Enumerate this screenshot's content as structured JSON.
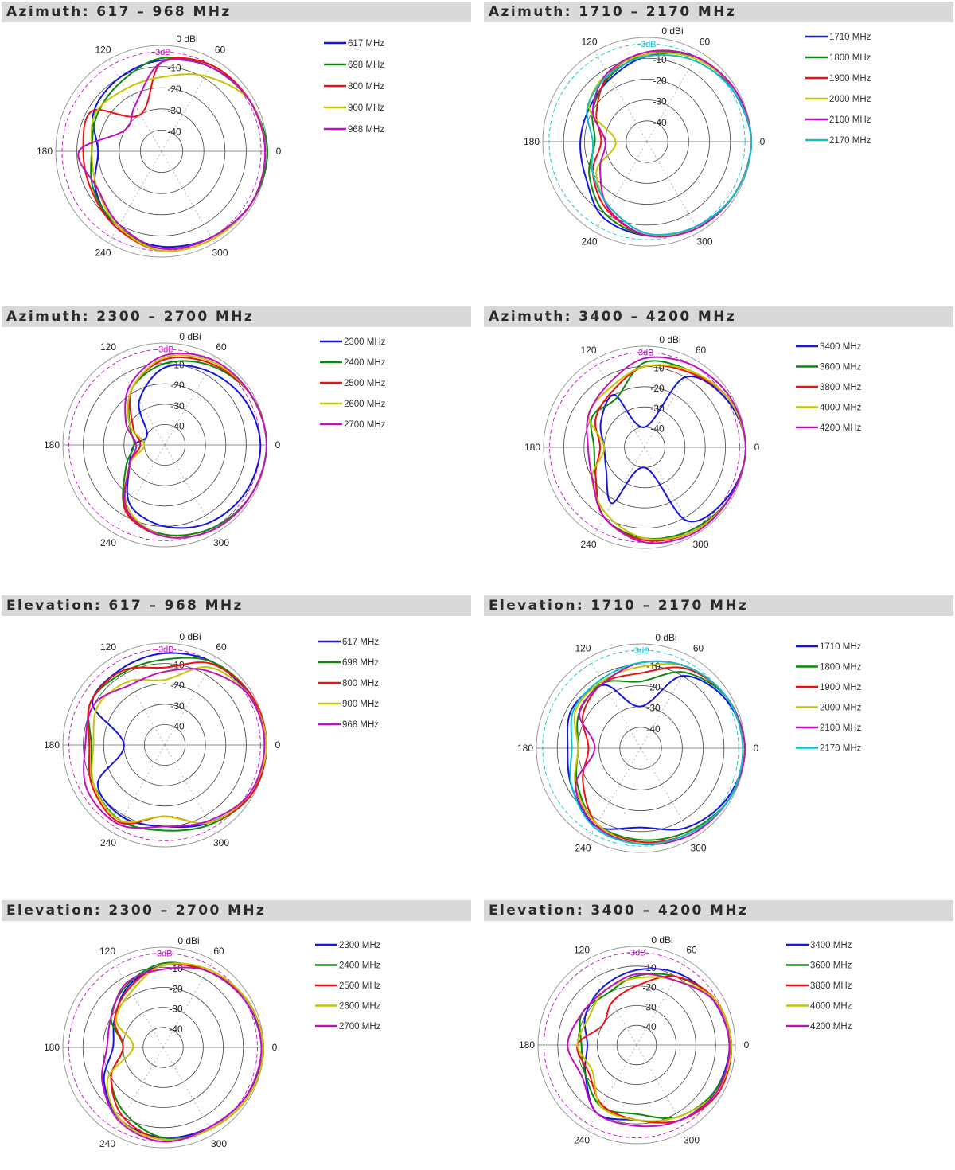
{
  "colors": {
    "blue": "#1515e0",
    "green": "#0a8a0a",
    "red": "#f01010",
    "yellow": "#c6c600",
    "magenta": "#c010c0",
    "cyan": "#10c0c8"
  },
  "chart_data": [
    {
      "type": "polar",
      "title": "Azimuth: 617 – 968 MHz",
      "r_unit": "dBi",
      "rlim": [
        -50,
        0
      ],
      "ring_ticks": [
        "0 dBi",
        "-10",
        "-20",
        "-30",
        "-40"
      ],
      "reference_label": "-3dB",
      "reference_color": "#c010c0",
      "angle_ticks": [
        "0",
        "60",
        "120",
        "180",
        "240",
        "300"
      ],
      "angles": [
        0,
        30,
        60,
        90,
        120,
        150,
        180,
        210,
        240,
        270,
        300,
        330
      ],
      "series": [
        {
          "name": "617 MHz",
          "color": "#1515e0",
          "values": [
            0,
            -2,
            -4,
            -7,
            -10,
            -13,
            -20,
            -14,
            -8,
            -5,
            -3,
            -1
          ]
        },
        {
          "name": "698 MHz",
          "color": "#0a8a0a",
          "values": [
            0,
            -2,
            -4,
            -6,
            -12,
            -15,
            -17,
            -13,
            -9,
            -4,
            -3,
            -1
          ]
        },
        {
          "name": "800 MHz",
          "color": "#f01010",
          "values": [
            -1,
            -2,
            -3,
            -8,
            -30,
            -12,
            -13,
            -12,
            -8,
            -3,
            -2,
            -1
          ]
        },
        {
          "name": "900 MHz",
          "color": "#c6c600",
          "values": [
            -1,
            -2,
            -9,
            -15,
            -16,
            -14,
            -17,
            -15,
            -9,
            -3,
            -2,
            -1
          ]
        },
        {
          "name": "968 MHz",
          "color": "#c010c0",
          "values": [
            -1,
            -2,
            -4,
            -8,
            -25,
            -30,
            -11,
            -15,
            -10,
            -4,
            -3,
            -1
          ]
        }
      ]
    },
    {
      "type": "polar",
      "title": "Azimuth: 1710 – 2170 MHz",
      "r_unit": "dBi",
      "rlim": [
        -50,
        0
      ],
      "ring_ticks": [
        "0 dBi",
        "-10",
        "-20",
        "-30",
        "-40"
      ],
      "reference_label": "-3dB",
      "reference_color": "#10c0c8",
      "angle_ticks": [
        "0",
        "60",
        "120",
        "180",
        "240",
        "300"
      ],
      "angles": [
        0,
        30,
        60,
        90,
        120,
        150,
        180,
        210,
        240,
        270,
        300,
        330
      ],
      "series": [
        {
          "name": "1710 MHz",
          "color": "#1515e0",
          "values": [
            0,
            -2,
            -3,
            -9,
            -15,
            -18,
            -18,
            -16,
            -8,
            -5,
            -3,
            -1
          ]
        },
        {
          "name": "1800 MHz",
          "color": "#0a8a0a",
          "values": [
            0,
            -1,
            -3,
            -8,
            -14,
            -20,
            -25,
            -18,
            -10,
            -5,
            -2,
            -1
          ]
        },
        {
          "name": "1900 MHz",
          "color": "#f01010",
          "values": [
            0,
            -1,
            -3,
            -7,
            -13,
            -22,
            -28,
            -20,
            -12,
            -5,
            -2,
            -1
          ]
        },
        {
          "name": "2000 MHz",
          "color": "#c6c600",
          "values": [
            0,
            -1,
            -4,
            -8,
            -12,
            -18,
            -35,
            -22,
            -14,
            -6,
            -2,
            -1
          ]
        },
        {
          "name": "2100 MHz",
          "color": "#c010c0",
          "values": [
            0,
            -1,
            -3,
            -7,
            -12,
            -20,
            -30,
            -24,
            -13,
            -5,
            -2,
            -1
          ]
        },
        {
          "name": "2170 MHz",
          "color": "#10c0c8",
          "values": [
            0,
            -2,
            -5,
            -9,
            -13,
            -17,
            -24,
            -20,
            -14,
            -6,
            -3,
            -1
          ]
        }
      ]
    },
    {
      "type": "polar",
      "title": "Azimuth: 2300 – 2700 MHz",
      "r_unit": "dBi",
      "rlim": [
        -50,
        0
      ],
      "ring_ticks": [
        "0 dBi",
        "-10",
        "-20",
        "-30",
        "-40"
      ],
      "reference_label": "-3dB",
      "reference_color": "#c010c0",
      "angle_ticks": [
        "0",
        "60",
        "120",
        "180",
        "240",
        "300"
      ],
      "angles": [
        0,
        30,
        60,
        90,
        120,
        150,
        180,
        210,
        240,
        270,
        300,
        330
      ],
      "series": [
        {
          "name": "2300 MHz",
          "color": "#1515e0",
          "values": [
            -3,
            -5,
            -8,
            -12,
            -25,
            -40,
            -35,
            -30,
            -16,
            -10,
            -6,
            -4
          ]
        },
        {
          "name": "2400 MHz",
          "color": "#0a8a0a",
          "values": [
            0,
            -1,
            -5,
            -10,
            -18,
            -30,
            -35,
            -28,
            -12,
            -6,
            -3,
            -1
          ]
        },
        {
          "name": "2500 MHz",
          "color": "#f01010",
          "values": [
            0,
            -1,
            -4,
            -8,
            -18,
            -32,
            -38,
            -30,
            -12,
            -5,
            -2,
            -1
          ]
        },
        {
          "name": "2600 MHz",
          "color": "#c6c600",
          "values": [
            0,
            -1,
            -3,
            -7,
            -18,
            -30,
            -40,
            -30,
            -14,
            -5,
            -2,
            -1
          ]
        },
        {
          "name": "2700 MHz",
          "color": "#c010c0",
          "values": [
            0,
            -1,
            -2,
            -6,
            -16,
            -28,
            -36,
            -30,
            -13,
            -5,
            -2,
            -1
          ]
        }
      ]
    },
    {
      "type": "polar",
      "title": "Azimuth: 3400 – 4200 MHz",
      "r_unit": "dBi",
      "rlim": [
        -50,
        0
      ],
      "ring_ticks": [
        "0 dBi",
        "-10",
        "-20",
        "-30",
        "-40"
      ],
      "reference_label": "-3dB",
      "reference_color": "#c010c0",
      "angle_ticks": [
        "0",
        "60",
        "120",
        "180",
        "240",
        "300"
      ],
      "angles": [
        0,
        30,
        60,
        90,
        120,
        150,
        180,
        210,
        240,
        270,
        300,
        330
      ],
      "series": [
        {
          "name": "3400 MHz",
          "color": "#1515e0",
          "values": [
            0,
            -3,
            -10,
            -40,
            -20,
            -25,
            -30,
            -28,
            -18,
            -40,
            -8,
            -2
          ]
        },
        {
          "name": "3600 MHz",
          "color": "#0a8a0a",
          "values": [
            0,
            -2,
            -6,
            -8,
            -22,
            -20,
            -25,
            -22,
            -10,
            -5,
            -3,
            -1
          ]
        },
        {
          "name": "3800 MHz",
          "color": "#f01010",
          "values": [
            0,
            -2,
            -7,
            -10,
            -18,
            -22,
            -28,
            -22,
            -10,
            -4,
            -2,
            -1
          ]
        },
        {
          "name": "4000 MHz",
          "color": "#c6c600",
          "values": [
            0,
            -2,
            -6,
            -10,
            -16,
            -18,
            -30,
            -20,
            -12,
            -5,
            -2,
            -1
          ]
        },
        {
          "name": "4200 MHz",
          "color": "#c010c0",
          "values": [
            0,
            -1,
            -3,
            -6,
            -14,
            -18,
            -22,
            -20,
            -10,
            -3,
            -1,
            -1
          ]
        }
      ]
    },
    {
      "type": "polar",
      "title": "Elevation: 617 – 968 MHz",
      "r_unit": "dBi",
      "rlim": [
        -50,
        0
      ],
      "ring_ticks": [
        "0 dBi",
        "-10",
        "-20",
        "-30",
        "-40"
      ],
      "reference_label": "-3dB",
      "reference_color": "#c010c0",
      "angle_ticks": [
        "0",
        "60",
        "120",
        "180",
        "240",
        "300"
      ],
      "angles": [
        0,
        30,
        60,
        90,
        120,
        150,
        180,
        210,
        240,
        270,
        300,
        330
      ],
      "series": [
        {
          "name": "617 MHz",
          "color": "#1515e0",
          "values": [
            0,
            -2,
            -3,
            -5,
            -7,
            -9,
            -30,
            -12,
            -9,
            -10,
            -6,
            -1
          ]
        },
        {
          "name": "698 MHz",
          "color": "#0a8a0a",
          "values": [
            0,
            -1,
            -3,
            -8,
            -9,
            -8,
            -14,
            -10,
            -7,
            -8,
            -5,
            -1
          ]
        },
        {
          "name": "800 MHz",
          "color": "#f01010",
          "values": [
            0,
            -1,
            -4,
            -12,
            -8,
            -8,
            -13,
            -9,
            -6,
            -15,
            -6,
            -1
          ]
        },
        {
          "name": "900 MHz",
          "color": "#c6c600",
          "values": [
            0,
            -2,
            -6,
            -18,
            -14,
            -12,
            -15,
            -10,
            -7,
            -15,
            -6,
            -2
          ]
        },
        {
          "name": "968 MHz",
          "color": "#c010c0",
          "values": [
            -1,
            -2,
            -8,
            -14,
            -16,
            -10,
            -11,
            -6,
            -5,
            -10,
            -7,
            -2
          ]
        }
      ]
    },
    {
      "type": "polar",
      "title": "Elevation: 1710 – 2170 MHz",
      "r_unit": "dBi",
      "rlim": [
        -50,
        0
      ],
      "ring_ticks": [
        "0 dBi",
        "-10",
        "-20",
        "-30",
        "-40"
      ],
      "reference_label": "-3dB",
      "reference_color": "#10c0c8",
      "angle_ticks": [
        "0",
        "60",
        "120",
        "180",
        "240",
        "300"
      ],
      "angles": [
        0,
        30,
        60,
        90,
        120,
        150,
        180,
        210,
        240,
        270,
        300,
        330
      ],
      "series": [
        {
          "name": "1710 MHz",
          "color": "#1515e0",
          "values": [
            0,
            -3,
            -10,
            -30,
            -15,
            -12,
            -15,
            -12,
            -7,
            -12,
            -6,
            -2
          ]
        },
        {
          "name": "1800 MHz",
          "color": "#0a8a0a",
          "values": [
            0,
            -2,
            -8,
            -18,
            -14,
            -16,
            -20,
            -15,
            -8,
            -6,
            -4,
            -1
          ]
        },
        {
          "name": "1900 MHz",
          "color": "#f01010",
          "values": [
            0,
            -2,
            -6,
            -14,
            -14,
            -18,
            -25,
            -18,
            -8,
            -5,
            -3,
            -1
          ]
        },
        {
          "name": "2000 MHz",
          "color": "#c6c600",
          "values": [
            0,
            -2,
            -5,
            -11,
            -13,
            -14,
            -20,
            -14,
            -8,
            -4,
            -3,
            -1
          ]
        },
        {
          "name": "2100 MHz",
          "color": "#c010c0",
          "values": [
            0,
            -2,
            -5,
            -9,
            -14,
            -16,
            -28,
            -14,
            -7,
            -4,
            -2,
            -1
          ]
        },
        {
          "name": "2170 MHz",
          "color": "#10c0c8",
          "values": [
            -1,
            -2,
            -5,
            -9,
            -12,
            -13,
            -17,
            -12,
            -6,
            -4,
            -3,
            -1
          ]
        }
      ]
    },
    {
      "type": "polar",
      "title": "Elevation: 2300 – 2700 MHz",
      "r_unit": "dBi",
      "rlim": [
        -50,
        0
      ],
      "ring_ticks": [
        "0 dBi",
        "-10",
        "-20",
        "-30",
        "-40"
      ],
      "reference_label": "-3dB",
      "reference_color": "#c010c0",
      "angle_ticks": [
        "0",
        "60",
        "120",
        "180",
        "240",
        "300"
      ],
      "angles": [
        0,
        30,
        60,
        90,
        120,
        150,
        180,
        210,
        240,
        270,
        300,
        330
      ],
      "series": [
        {
          "name": "2300 MHz",
          "color": "#1515e0",
          "values": [
            0,
            -3,
            -6,
            -9,
            -15,
            -22,
            -25,
            -16,
            -8,
            -5,
            -4,
            -2
          ]
        },
        {
          "name": "2400 MHz",
          "color": "#0a8a0a",
          "values": [
            0,
            -2,
            -6,
            -8,
            -14,
            -20,
            -30,
            -20,
            -12,
            -5,
            -3,
            -1
          ]
        },
        {
          "name": "2500 MHz",
          "color": "#f01010",
          "values": [
            0,
            -2,
            -6,
            -9,
            -16,
            -22,
            -30,
            -20,
            -10,
            -4,
            -3,
            -1
          ]
        },
        {
          "name": "2600 MHz",
          "color": "#c6c600",
          "values": [
            0,
            -2,
            -5,
            -9,
            -18,
            -23,
            -35,
            -18,
            -8,
            -4,
            -3,
            -1
          ]
        },
        {
          "name": "2700 MHz",
          "color": "#c010c0",
          "values": [
            -1,
            -3,
            -6,
            -11,
            -13,
            -20,
            -22,
            -15,
            -7,
            -3,
            -4,
            -2
          ]
        }
      ]
    },
    {
      "type": "polar",
      "title": "Elevation: 3400 – 4200 MHz",
      "r_unit": "dBi",
      "rlim": [
        -50,
        0
      ],
      "ring_ticks": [
        "0 dBi",
        "-10",
        "-20",
        "-30",
        "-40"
      ],
      "reference_label": "-3dB",
      "reference_color": "#c010c0",
      "angle_ticks": [
        "0",
        "60",
        "120",
        "180",
        "240",
        "300"
      ],
      "angles": [
        0,
        30,
        60,
        90,
        120,
        150,
        180,
        210,
        240,
        270,
        300,
        330
      ],
      "series": [
        {
          "name": "3400 MHz",
          "color": "#1515e0",
          "values": [
            -3,
            -5,
            -8,
            -12,
            -16,
            -20,
            -25,
            -20,
            -10,
            -12,
            -6,
            -4
          ]
        },
        {
          "name": "3600 MHz",
          "color": "#0a8a0a",
          "values": [
            -2,
            -4,
            -10,
            -15,
            -20,
            -18,
            -22,
            -20,
            -14,
            -15,
            -8,
            -4
          ]
        },
        {
          "name": "3800 MHz",
          "color": "#f01010",
          "values": [
            -2,
            -4,
            -10,
            -20,
            -25,
            -30,
            -20,
            -22,
            -15,
            -12,
            -6,
            -2
          ]
        },
        {
          "name": "4000 MHz",
          "color": "#c6c600",
          "values": [
            -2,
            -4,
            -12,
            -16,
            -18,
            -22,
            -20,
            -24,
            -14,
            -12,
            -8,
            -3
          ]
        },
        {
          "name": "4200 MHz",
          "color": "#c010c0",
          "values": [
            -3,
            -5,
            -12,
            -14,
            -18,
            -18,
            -15,
            -18,
            -10,
            -9,
            -6,
            -3
          ]
        }
      ]
    }
  ]
}
